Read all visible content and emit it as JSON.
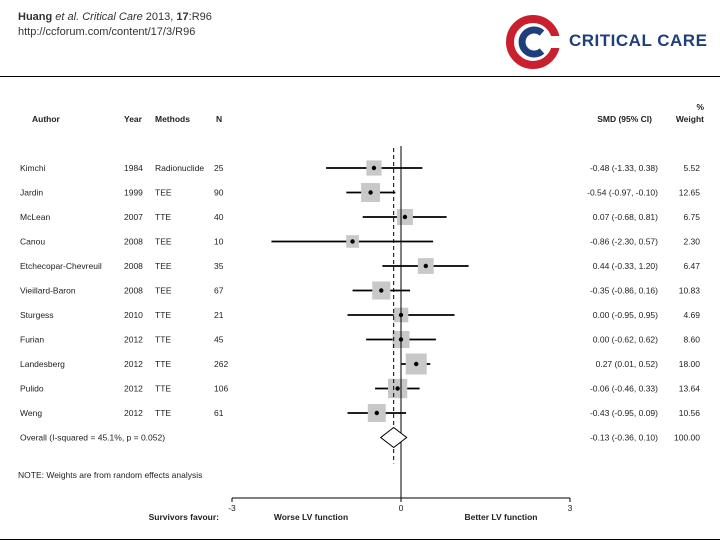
{
  "citation": {
    "authors": "Huang",
    "etal": "et al.",
    "journal": "Critical Care",
    "year": "2013,",
    "volume": "17",
    "page": ":R96",
    "url": "http://ccforum.com/content/17/3/R96"
  },
  "brand": {
    "name": "CRITICAL CARE",
    "color_red": "#c8202f",
    "color_navy": "#1f3f7a"
  },
  "chart_data": {
    "type": "forest",
    "headers": {
      "author": "Author",
      "year": "Year",
      "methods": "Methods",
      "n": "N",
      "smd": "SMD (95% CI)",
      "weight_line1": "%",
      "weight_line2": "Weight"
    },
    "studies": [
      {
        "author": "Kimchi",
        "year": "1984",
        "method": "Radionuclide",
        "n": "25",
        "smd": -0.48,
        "lo": -1.33,
        "hi": 0.38,
        "smd_text": "-0.48 (-1.33, 0.38)",
        "weight": "5.52"
      },
      {
        "author": "Jardin",
        "year": "1999",
        "method": "TEE",
        "n": "90",
        "smd": -0.54,
        "lo": -0.97,
        "hi": -0.1,
        "smd_text": "-0.54 (-0.97, -0.10)",
        "weight": "12.65"
      },
      {
        "author": "McLean",
        "year": "2007",
        "method": "TTE",
        "n": "40",
        "smd": 0.07,
        "lo": -0.68,
        "hi": 0.81,
        "smd_text": "0.07 (-0.68, 0.81)",
        "weight": "6.75"
      },
      {
        "author": "Canou",
        "year": "2008",
        "method": "TEE",
        "n": "10",
        "smd": -0.86,
        "lo": -2.3,
        "hi": 0.57,
        "smd_text": "-0.86 (-2.30, 0.57)",
        "weight": "2.30"
      },
      {
        "author": "Etchecopar-Chevreuil",
        "year": "2008",
        "method": "TEE",
        "n": "35",
        "smd": 0.44,
        "lo": -0.33,
        "hi": 1.2,
        "smd_text": "0.44 (-0.33, 1.20)",
        "weight": "6.47"
      },
      {
        "author": "Vieillard-Baron",
        "year": "2008",
        "method": "TEE",
        "n": "67",
        "smd": -0.35,
        "lo": -0.86,
        "hi": 0.16,
        "smd_text": "-0.35 (-0.86, 0.16)",
        "weight": "10.83"
      },
      {
        "author": "Sturgess",
        "year": "2010",
        "method": "TTE",
        "n": "21",
        "smd": 0.0,
        "lo": -0.95,
        "hi": 0.95,
        "smd_text": "0.00 (-0.95, 0.95)",
        "weight": "4.69"
      },
      {
        "author": "Furian",
        "year": "2012",
        "method": "TTE",
        "n": "45",
        "smd": 0.0,
        "lo": -0.62,
        "hi": 0.62,
        "smd_text": "0.00 (-0.62, 0.62)",
        "weight": "8.60"
      },
      {
        "author": "Landesberg",
        "year": "2012",
        "method": "TTE",
        "n": "262",
        "smd": 0.27,
        "lo": 0.01,
        "hi": 0.52,
        "smd_text": "0.27 (0.01, 0.52)",
        "weight": "18.00"
      },
      {
        "author": "Pulido",
        "year": "2012",
        "method": "TTE",
        "n": "106",
        "smd": -0.06,
        "lo": -0.46,
        "hi": 0.33,
        "smd_text": "-0.06 (-0.46, 0.33)",
        "weight": "13.64"
      },
      {
        "author": "Weng",
        "year": "2012",
        "method": "TTE",
        "n": "61",
        "smd": -0.43,
        "lo": -0.95,
        "hi": 0.09,
        "smd_text": "-0.43 (-0.95, 0.09)",
        "weight": "10.56"
      }
    ],
    "overall": {
      "label": "Overall  (I-squared = 45.1%, p = 0.052)",
      "smd": -0.13,
      "lo": -0.36,
      "hi": 0.1,
      "smd_text": "-0.13 (-0.36, 0.10)",
      "weight": "100.00"
    },
    "note": "NOTE: Weights are from random effects analysis",
    "x_range": [
      -3,
      3
    ],
    "x_ticks": [
      -3,
      0,
      3
    ],
    "x_tick_labels": [
      "-3",
      "0",
      "3"
    ],
    "footer": {
      "favours": "Survivors favour:",
      "left": "Worse LV function",
      "right": "Better LV function"
    }
  }
}
